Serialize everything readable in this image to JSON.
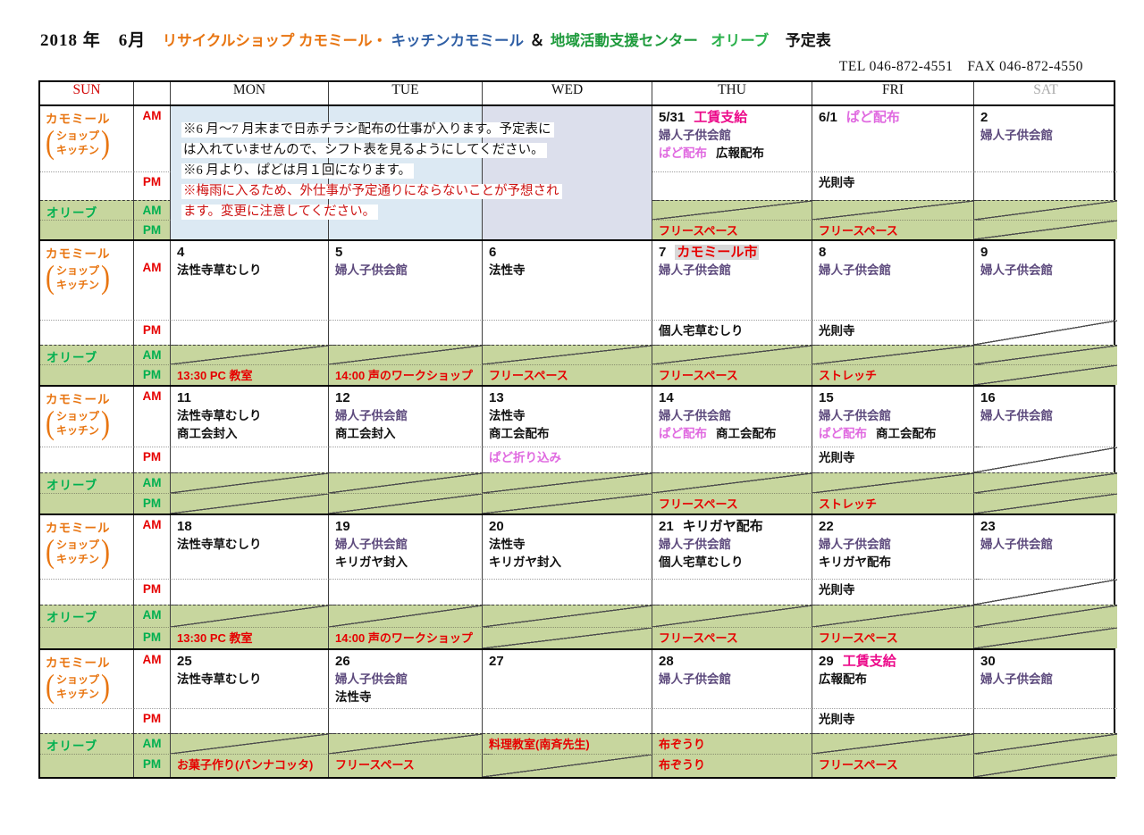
{
  "page": {
    "title": {
      "date_part": "2018 年　6月",
      "shop_part": "リサイクルショップ カモミール・",
      "kitchen_part": "キッチンカモミール",
      "ampersand": "＆",
      "center_part": "地域活動支援センター",
      "olive_part": "オリーブ",
      "suffix": "予定表"
    },
    "contact": "TEL 046-872-4551　FAX 046-872-4550"
  },
  "header": {
    "days": [
      "SUN",
      "",
      "MON",
      "TUE",
      "WED",
      "THU",
      "FRI",
      "SAT"
    ]
  },
  "row_labels": {
    "chamomile": "カモミール",
    "shop": "ショップ",
    "kitchen": "キッチン",
    "olive": "オリーブ",
    "am": "AM",
    "pm": "PM"
  },
  "notes": {
    "lines": [
      {
        "text": "※6 月～7 月末まで日赤チラシ配布の仕事が入ります。予定表に",
        "color": "black"
      },
      {
        "text": "は入れていませんので、シフト表を見るようにしてください。",
        "color": "black"
      },
      {
        "text": "※6 月より、ぱどは月１回になります。",
        "color": "black"
      },
      {
        "text": "※梅雨に入るため、外仕事が予定通りにならないことが予想され",
        "color": "red"
      },
      {
        "text": "ます。変更に注意してください。",
        "color": "red"
      }
    ]
  },
  "colors": {
    "olive_row_bg": "#c7d69e",
    "notes_bg": "#dce9f3",
    "notes_bg_wed": "#dcdfec",
    "purple": "#5d4a7d",
    "pink": "#e06ae0",
    "magenta": "#ec0a8a",
    "red": "#e60000",
    "orange": "#e87511",
    "title_blue": "#2f5fa5",
    "title_green": "#1f9b3d",
    "olive_green": "#00b050",
    "sat_grey": "#a8a8a8",
    "sun_red": "#d10000",
    "highlight_grey": "#d8d8d8"
  },
  "weeks": [
    {
      "days": [
        {
          "notes_overlay": "mon"
        },
        {
          "notes_overlay": "tue"
        },
        {
          "notes_overlay": "wed"
        },
        {
          "date": "5/31",
          "date_extra": [
            {
              "t": "工賃支給",
              "c": "magenta",
              "gap": true
            }
          ],
          "am": [
            [
              {
                "t": "婦人子供会館",
                "c": "purple"
              }
            ],
            [
              {
                "t": "ぱど配布",
                "c": "pink"
              },
              {
                "t": "広報配布",
                "c": "black",
                "gap": true
              }
            ]
          ],
          "pm": [],
          "olive_am": {
            "diag": true
          },
          "olive_pm": {
            "lines": [
              [
                {
                  "t": "フリースペース",
                  "c": "red"
                }
              ]
            ]
          }
        },
        {
          "date": "6/1",
          "date_extra": [
            {
              "t": "ぱど配布",
              "c": "pink",
              "gap": true
            }
          ],
          "am": [],
          "pm": [
            [
              {
                "t": "光則寺",
                "c": "black"
              }
            ]
          ],
          "olive_am": {
            "diag": true
          },
          "olive_pm": {
            "lines": [
              [
                {
                  "t": "フリースペース",
                  "c": "red"
                }
              ]
            ]
          }
        },
        {
          "date": "2",
          "am": [
            [
              {
                "t": "婦人子供会館",
                "c": "purple"
              }
            ]
          ],
          "pm": [],
          "olive_am": {
            "diag": true
          },
          "olive_pm": {
            "diag": true
          }
        }
      ]
    },
    {
      "days": [
        {
          "date": "4",
          "am": [
            [
              {
                "t": "法性寺草むしり",
                "c": "black"
              }
            ]
          ],
          "pm": [],
          "olive_am": {
            "diag": true
          },
          "olive_pm": {
            "lines": [
              [
                {
                  "t": "13:30  PC 教室",
                  "c": "red"
                }
              ]
            ]
          }
        },
        {
          "date": "5",
          "am": [
            [
              {
                "t": "婦人子供会館",
                "c": "purple"
              }
            ]
          ],
          "pm": [],
          "olive_am": {
            "diag": true
          },
          "olive_pm": {
            "lines": [
              [
                {
                  "t": "14:00 声のワークショップ",
                  "c": "red"
                }
              ]
            ]
          }
        },
        {
          "date": "6",
          "am": [
            [
              {
                "t": "法性寺",
                "c": "black"
              }
            ]
          ],
          "pm": [],
          "olive_am": {
            "diag": true
          },
          "olive_pm": {
            "lines": [
              [
                {
                  "t": "フリースペース",
                  "c": "red"
                }
              ]
            ]
          }
        },
        {
          "date": "7",
          "date_extra": [
            {
              "t": "カモミール市",
              "c": "red",
              "hl": true,
              "gap": true
            }
          ],
          "am": [
            [
              {
                "t": "婦人子供会館",
                "c": "purple"
              }
            ]
          ],
          "pm": [
            [
              {
                "t": "個人宅草むしり",
                "c": "black"
              }
            ]
          ],
          "olive_am": {
            "diag": true
          },
          "olive_pm": {
            "lines": [
              [
                {
                  "t": "フリースペース",
                  "c": "red"
                }
              ]
            ]
          }
        },
        {
          "date": "8",
          "am": [
            [
              {
                "t": "婦人子供会館",
                "c": "purple"
              }
            ]
          ],
          "pm": [
            [
              {
                "t": "光則寺",
                "c": "black"
              }
            ]
          ],
          "olive_am": {
            "diag": true
          },
          "olive_pm": {
            "lines": [
              [
                {
                  "t": "ストレッチ",
                  "c": "red"
                }
              ]
            ]
          }
        },
        {
          "date": "9",
          "am": [
            [
              {
                "t": "婦人子供会館",
                "c": "purple"
              }
            ]
          ],
          "pm": [],
          "pm_diag": true,
          "olive_am": {
            "diag": true
          },
          "olive_pm": {
            "diag": true
          }
        }
      ]
    },
    {
      "days": [
        {
          "date": "11",
          "am": [
            [
              {
                "t": "法性寺草むしり",
                "c": "black"
              }
            ],
            [
              {
                "t": "商工会封入",
                "c": "black"
              }
            ]
          ],
          "pm": [],
          "olive_am": {
            "diag": true
          },
          "olive_pm": {
            "diag": true
          }
        },
        {
          "date": "12",
          "am": [
            [
              {
                "t": "婦人子供会館",
                "c": "purple"
              }
            ],
            [
              {
                "t": "商工会封入",
                "c": "black"
              }
            ]
          ],
          "pm": [],
          "olive_am": {
            "diag": true
          },
          "olive_pm": {
            "diag": true
          }
        },
        {
          "date": "13",
          "am": [
            [
              {
                "t": "法性寺",
                "c": "black"
              }
            ],
            [
              {
                "t": "商工会配布",
                "c": "black"
              }
            ]
          ],
          "pm": [
            [
              {
                "t": "ぱど折り込み",
                "c": "pink"
              }
            ]
          ],
          "olive_am": {
            "diag": true
          },
          "olive_pm": {
            "diag": true
          }
        },
        {
          "date": "14",
          "am": [
            [
              {
                "t": "婦人子供会館",
                "c": "purple"
              }
            ],
            [
              {
                "t": "ぱど配布",
                "c": "pink"
              },
              {
                "t": "商工会配布",
                "c": "black",
                "gap": true
              }
            ]
          ],
          "pm": [],
          "olive_am": {
            "diag": true
          },
          "olive_pm": {
            "lines": [
              [
                {
                  "t": "フリースペース",
                  "c": "red"
                }
              ]
            ]
          }
        },
        {
          "date": "15",
          "am": [
            [
              {
                "t": "婦人子供会館",
                "c": "purple"
              }
            ],
            [
              {
                "t": "ぱど配布",
                "c": "pink"
              },
              {
                "t": "商工会配布",
                "c": "black",
                "gap": true
              }
            ]
          ],
          "pm": [
            [
              {
                "t": "光則寺",
                "c": "black"
              }
            ]
          ],
          "olive_am": {
            "diag": true
          },
          "olive_pm": {
            "lines": [
              [
                {
                  "t": "ストレッチ",
                  "c": "red"
                }
              ]
            ]
          }
        },
        {
          "date": "16",
          "am": [
            [
              {
                "t": "婦人子供会館",
                "c": "purple"
              }
            ]
          ],
          "pm": [],
          "pm_diag": true,
          "olive_am": {
            "diag": true
          },
          "olive_pm": {
            "diag": true
          }
        }
      ]
    },
    {
      "days": [
        {
          "date": "18",
          "am": [
            [
              {
                "t": "法性寺草むしり",
                "c": "black"
              }
            ]
          ],
          "pm": [],
          "olive_am": {
            "diag": true
          },
          "olive_pm": {
            "lines": [
              [
                {
                  "t": "13:30  PC 教室",
                  "c": "red"
                }
              ]
            ]
          }
        },
        {
          "date": "19",
          "am": [
            [
              {
                "t": "婦人子供会館",
                "c": "purple"
              }
            ],
            [
              {
                "t": "キリガヤ封入",
                "c": "black"
              }
            ]
          ],
          "pm": [],
          "olive_am": {
            "diag": true
          },
          "olive_pm": {
            "lines": [
              [
                {
                  "t": "14:00 声のワークショップ",
                  "c": "red"
                }
              ]
            ]
          }
        },
        {
          "date": "20",
          "am": [
            [
              {
                "t": "法性寺",
                "c": "black"
              }
            ],
            [
              {
                "t": "キリガヤ封入",
                "c": "black"
              }
            ]
          ],
          "pm": [],
          "olive_am": {
            "diag": true
          },
          "olive_pm": {
            "diag": true
          }
        },
        {
          "date": "21",
          "date_extra": [
            {
              "t": "キリガヤ配布",
              "c": "black",
              "gap": true
            }
          ],
          "am": [
            [
              {
                "t": "婦人子供会館",
                "c": "purple"
              }
            ],
            [
              {
                "t": "個人宅草むしり",
                "c": "black"
              }
            ]
          ],
          "pm": [],
          "olive_am": {
            "diag": true
          },
          "olive_pm": {
            "lines": [
              [
                {
                  "t": "フリースペース",
                  "c": "red"
                }
              ]
            ]
          }
        },
        {
          "date": "22",
          "am": [
            [
              {
                "t": "婦人子供会館",
                "c": "purple"
              }
            ],
            [
              {
                "t": "キリガヤ配布",
                "c": "black"
              }
            ]
          ],
          "pm": [
            [
              {
                "t": "光則寺",
                "c": "black"
              }
            ]
          ],
          "olive_am": {
            "diag": true
          },
          "olive_pm": {
            "lines": [
              [
                {
                  "t": "フリースペース",
                  "c": "red"
                }
              ]
            ]
          }
        },
        {
          "date": "23",
          "am": [
            [
              {
                "t": "婦人子供会館",
                "c": "purple"
              }
            ]
          ],
          "pm": [],
          "pm_diag": true,
          "olive_am": {
            "diag": true
          },
          "olive_pm": {
            "diag": true
          }
        }
      ]
    },
    {
      "days": [
        {
          "date": "25",
          "am": [
            [
              {
                "t": "法性寺草むしり",
                "c": "black"
              }
            ]
          ],
          "pm": [],
          "olive_am": {
            "diag": true
          },
          "olive_pm": {
            "lines": [
              [
                {
                  "t": "お菓子作り(パンナコッタ)",
                  "c": "red"
                }
              ]
            ]
          }
        },
        {
          "date": "26",
          "am": [
            [
              {
                "t": "婦人子供会館",
                "c": "purple"
              }
            ],
            [
              {
                "t": "法性寺",
                "c": "black"
              }
            ]
          ],
          "pm": [],
          "olive_am": {
            "diag": true
          },
          "olive_pm": {
            "lines": [
              [
                {
                  "t": "フリースペース",
                  "c": "red"
                }
              ]
            ]
          }
        },
        {
          "date": "27",
          "am": [],
          "pm": [],
          "olive_am": {
            "lines": [
              [
                {
                  "t": "料理教室(南斉先生)",
                  "c": "red"
                }
              ]
            ]
          },
          "olive_pm": {
            "diag": true
          }
        },
        {
          "date": "28",
          "am": [
            [
              {
                "t": "婦人子供会館",
                "c": "purple"
              }
            ]
          ],
          "pm": [],
          "olive_am": {
            "lines": [
              [
                {
                  "t": "布ぞうり",
                  "c": "red"
                }
              ]
            ]
          },
          "olive_pm": {
            "lines": [
              [
                {
                  "t": "布ぞうり",
                  "c": "red"
                }
              ]
            ]
          }
        },
        {
          "date": "29",
          "date_extra": [
            {
              "t": "工賃支給",
              "c": "magenta",
              "gap": true
            }
          ],
          "am": [
            [
              {
                "t": "広報配布",
                "c": "black"
              }
            ]
          ],
          "pm": [
            [
              {
                "t": "光則寺",
                "c": "black"
              }
            ]
          ],
          "olive_am": {
            "diag": true
          },
          "olive_pm": {
            "lines": [
              [
                {
                  "t": "フリースペース",
                  "c": "red"
                }
              ]
            ]
          }
        },
        {
          "date": "30",
          "am": [
            [
              {
                "t": "婦人子供会館",
                "c": "purple"
              }
            ]
          ],
          "pm": [],
          "olive_am": {
            "diag": true
          },
          "olive_pm": {
            "diag": true
          }
        }
      ]
    }
  ]
}
